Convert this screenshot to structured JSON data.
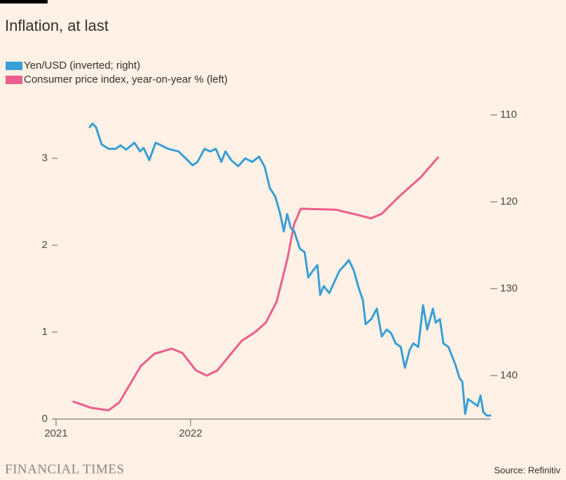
{
  "chart_data": {
    "type": "line",
    "title": "Inflation, at last",
    "source": "Source: Refinitiv",
    "logo": "FINANCIAL TIMES",
    "xlim": [
      2021,
      2024.25
    ],
    "xticks": [
      2021,
      2022
    ],
    "ylim": [
      0,
      3.5
    ],
    "yticks": [
      0,
      1,
      2,
      3
    ],
    "y2lim": [
      145,
      110
    ],
    "y2ticks": [
      110,
      120,
      130,
      140
    ],
    "series": [
      {
        "name": "Yen/USD (inverted; right)",
        "color": "#3a9fd6",
        "axis": "y2",
        "x": [
          2021.25,
          2021.271,
          2021.297,
          2021.339,
          2021.391,
          2021.443,
          2021.479,
          2021.521,
          2021.583,
          2021.625,
          2021.651,
          2021.693,
          2021.74,
          2021.781,
          2021.833,
          2021.911,
          2021.964,
          2022.016,
          2022.052,
          2022.104,
          2022.146,
          2022.188,
          2022.229,
          2022.26,
          2022.302,
          2022.354,
          2022.406,
          2022.458,
          2022.51,
          2022.552,
          2022.589,
          2022.63,
          2022.667,
          2022.693,
          2022.719,
          2022.745,
          2022.771,
          2022.813,
          2022.849,
          2022.875,
          2022.911,
          2022.943,
          2022.964,
          2022.99,
          2023.031,
          2023.073,
          2023.109,
          2023.146,
          2023.177,
          2023.214,
          2023.25,
          2023.281,
          2023.302,
          2023.344,
          2023.385,
          2023.422,
          2023.458,
          2023.49,
          2023.526,
          2023.563,
          2023.594,
          2023.63,
          2023.656,
          2023.693,
          2023.729,
          2023.76,
          2023.802,
          2023.823,
          2023.854,
          2023.88,
          2023.917,
          2023.969,
          2024.0,
          2024.021,
          2024.042,
          2024.063,
          2024.099,
          2024.135,
          2024.156,
          2024.177,
          2024.203,
          2024.229
        ],
        "values": [
          111.4,
          111.0,
          111.4,
          113.4,
          113.9,
          113.9,
          113.5,
          114.0,
          113.2,
          114.2,
          113.8,
          115.2,
          113.2,
          113.5,
          113.9,
          114.2,
          115.0,
          115.8,
          115.4,
          113.9,
          114.2,
          113.9,
          115.4,
          114.2,
          115.2,
          115.9,
          115.0,
          115.4,
          114.8,
          116.0,
          118.4,
          119.4,
          121.4,
          123.4,
          121.4,
          123.0,
          123.4,
          125.4,
          125.8,
          128.7,
          127.9,
          127.3,
          130.7,
          129.7,
          130.5,
          129.1,
          127.9,
          127.3,
          126.7,
          127.9,
          129.9,
          131.3,
          134.1,
          133.5,
          132.3,
          135.5,
          134.7,
          135.1,
          136.3,
          136.7,
          139.1,
          137.0,
          136.3,
          136.7,
          131.9,
          134.7,
          132.3,
          133.9,
          133.5,
          136.3,
          136.7,
          138.7,
          140.3,
          140.7,
          144.4,
          142.7,
          143.1,
          143.5,
          142.3,
          144.2,
          144.6,
          144.6
        ]
      },
      {
        "name": "Consumer price index, year-on-year % (left)",
        "color": "#eb5e8d",
        "axis": "y",
        "x": [
          2021.13,
          2021.26,
          2021.39,
          2021.47,
          2021.55,
          2021.63,
          2021.73,
          2021.86,
          2021.94,
          2022.04,
          2022.12,
          2022.2,
          2022.3,
          2022.38,
          2022.48,
          2022.56,
          2022.64,
          2022.72,
          2022.77,
          2022.82,
          2023.08,
          2023.24,
          2023.34,
          2023.42,
          2023.55,
          2023.71,
          2023.84
        ],
        "values": [
          0.2,
          0.13,
          0.1,
          0.19,
          0.4,
          0.61,
          0.75,
          0.81,
          0.76,
          0.56,
          0.5,
          0.56,
          0.75,
          0.9,
          1.0,
          1.11,
          1.35,
          1.84,
          2.24,
          2.42,
          2.41,
          2.35,
          2.31,
          2.36,
          2.56,
          2.78,
          3.01
        ]
      }
    ]
  }
}
